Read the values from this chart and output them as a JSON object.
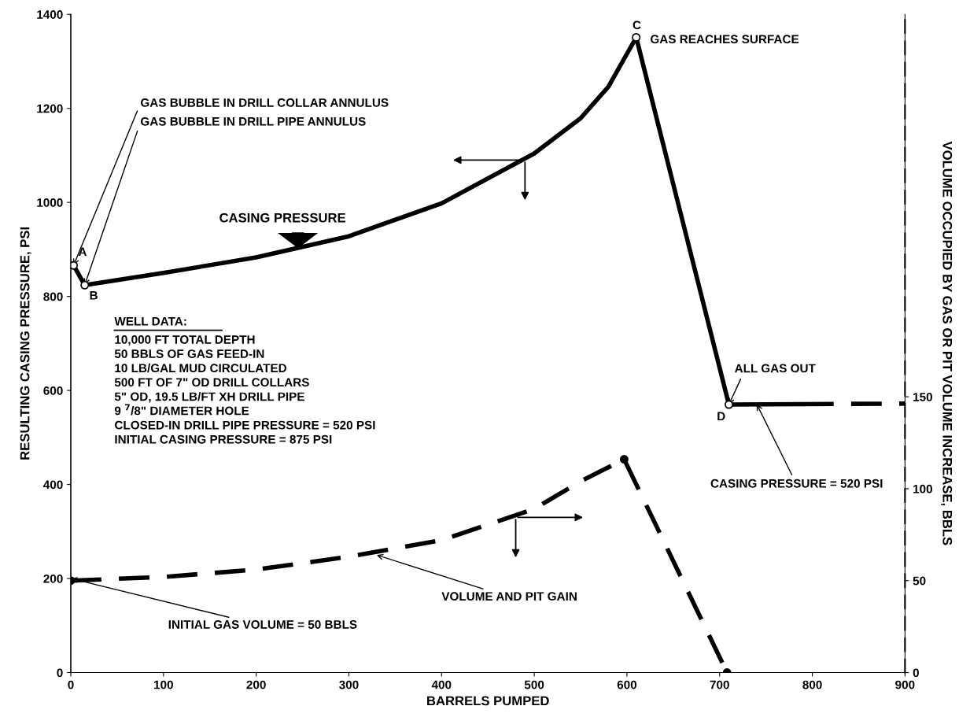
{
  "chart_data": {
    "type": "line",
    "xlabel": "BARRELS PUMPED",
    "ylabel": "RESULTING CASING PRESSURE, PSI",
    "y2label": "VOLUME OCCUPIED BY GAS OR PIT VOLUME INCREASE, BBLS",
    "xlim": [
      0,
      900
    ],
    "xticks": [
      0,
      100,
      200,
      300,
      400,
      500,
      600,
      700,
      800,
      900
    ],
    "ylim": [
      0,
      1400
    ],
    "yticks": [
      0,
      200,
      400,
      600,
      800,
      1000,
      1200,
      1400
    ],
    "y2lim": [
      0,
      358
    ],
    "y2ticks": [
      0,
      50,
      100,
      150
    ],
    "grid": false,
    "series": [
      {
        "color": "#000000",
        "line_style": "solid",
        "x": [
          3,
          15,
          100,
          200,
          300,
          400,
          500,
          550,
          580,
          610,
          710,
          790
        ],
        "values": [
          866,
          824,
          850,
          883,
          928,
          998,
          1104,
          1179,
          1246,
          1351,
          570,
          571
        ]
      },
      {
        "color": "#000000",
        "line_style": "dashed",
        "x": [
          790,
          900
        ],
        "values": [
          571,
          572
        ]
      },
      {
        "color": "#000000",
        "line_style": "dashed",
        "axis": "y2",
        "x": [
          0,
          100,
          200,
          300,
          400,
          500,
          550,
          597,
          708
        ],
        "values": [
          50,
          52,
          56,
          63,
          72,
          89,
          104,
          116,
          0
        ]
      },
      {
        "type": "scatter",
        "color": "#000000",
        "marker": "circle",
        "x": [
          3,
          15,
          610,
          710
        ],
        "values": [
          866,
          824,
          1351,
          570
        ]
      },
      {
        "type": "scatter",
        "color": "#000000",
        "marker": "circle",
        "axis": "y2",
        "x": [
          0,
          597,
          708
        ],
        "values": [
          50,
          116,
          0
        ]
      }
    ],
    "annotations": [
      {
        "text": "GAS BUBBLE IN DRILL COLLAR ANNULUS",
        "x": 3,
        "y": 866
      },
      {
        "text": "GAS BUBBLE IN DRILL PIPE ANNULUS",
        "x": 15,
        "y": 824
      },
      {
        "text": "A",
        "x": 3,
        "y": 866
      },
      {
        "text": "B",
        "x": 15,
        "y": 824
      },
      {
        "text": "C",
        "x": 610,
        "y": 1351
      },
      {
        "text": "D",
        "x": 710,
        "y": 570
      },
      {
        "text": "GAS REACHES SURFACE",
        "x": 610,
        "y": 1351
      },
      {
        "text": "ALL GAS OUT",
        "x": 710,
        "y": 570
      },
      {
        "text": "CASING PRESSURE = 520 PSI",
        "x": 740,
        "y": 571
      },
      {
        "text": "VOLUME AND PIT GAIN",
        "x": 330,
        "y": 250
      },
      {
        "text": "INITIAL GAS VOLUME = 50 BBLS",
        "x": 0,
        "y": 200
      },
      "CASING PRESSURE",
      "WELL DATA:",
      "10,000 FT TOTAL DEPTH\n50 BBLS OF GAS FEED-IN\n10 LB/GAL MUD CIRCULATED\n500 FT OF 7\" OD DRILL COLLARS\n5\" OD, 19.5 LB/FT XH DRILL PIPE\n9 $^{7}$/8\" DIAMETER HOLE\nCLOSED-IN DRILL PIPE PRESSURE = 520 PSI\nINITIAL CASING PRESSURE = 875 PSI"
    ]
  }
}
